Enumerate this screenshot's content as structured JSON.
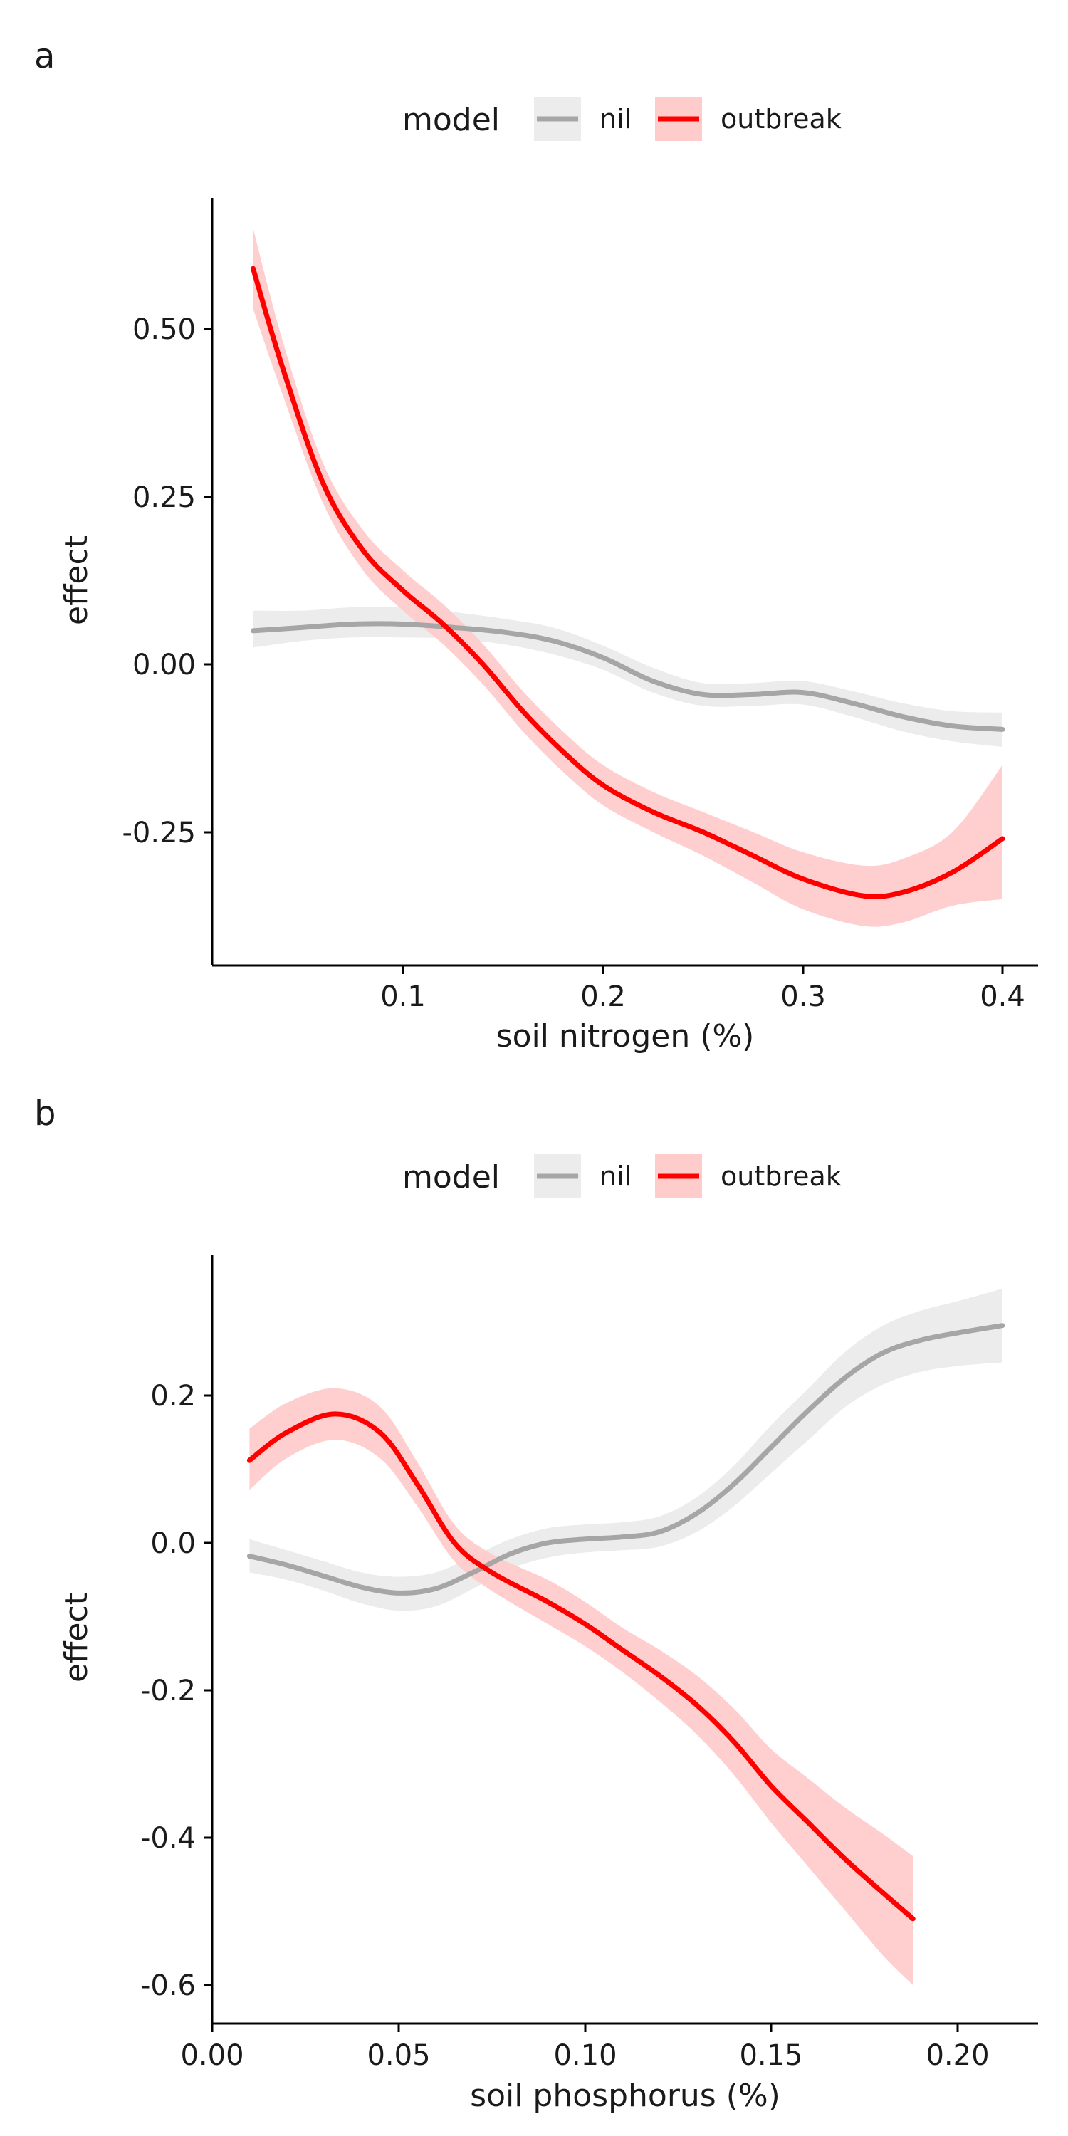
{
  "colors": {
    "nil_line": "#a6a6a6",
    "nil_band": "#ececec",
    "outbreak_line": "#ff0000",
    "outbreak_band": "#ffcccc"
  },
  "chart_data": [
    {
      "type": "line",
      "panel": "a",
      "legend": {
        "title": "model",
        "position": "top",
        "entries": [
          "nil",
          "outbreak"
        ]
      },
      "xlabel": "soil nitrogen (%)",
      "ylabel": "effect",
      "xlim": [
        0.02,
        0.415
      ],
      "ylim": [
        -0.45,
        0.7
      ],
      "x_ticks": [
        0.1,
        0.2,
        0.3,
        0.4
      ],
      "x_tick_labels": [
        "0.1",
        "0.2",
        "0.3",
        "0.4"
      ],
      "y_ticks": [
        -0.25,
        0.0,
        0.25,
        0.5
      ],
      "y_tick_labels": [
        "-0.25",
        "0.00",
        "0.25",
        "0.50"
      ],
      "grid": false,
      "series": [
        {
          "name": "nil",
          "x": [
            0.025,
            0.05,
            0.075,
            0.1,
            0.125,
            0.15,
            0.175,
            0.2,
            0.225,
            0.25,
            0.275,
            0.3,
            0.325,
            0.35,
            0.375,
            0.4
          ],
          "y": [
            0.05,
            0.055,
            0.06,
            0.06,
            0.055,
            0.048,
            0.035,
            0.01,
            -0.025,
            -0.045,
            -0.045,
            -0.042,
            -0.058,
            -0.078,
            -0.092,
            -0.097
          ],
          "lower": [
            0.025,
            0.035,
            0.04,
            0.04,
            0.038,
            0.03,
            0.015,
            -0.008,
            -0.042,
            -0.062,
            -0.062,
            -0.06,
            -0.078,
            -0.1,
            -0.115,
            -0.123
          ],
          "upper": [
            0.08,
            0.08,
            0.085,
            0.085,
            0.078,
            0.068,
            0.055,
            0.028,
            -0.005,
            -0.028,
            -0.028,
            -0.025,
            -0.04,
            -0.058,
            -0.07,
            -0.072
          ]
        },
        {
          "name": "outbreak",
          "x": [
            0.025,
            0.04,
            0.06,
            0.08,
            0.1,
            0.12,
            0.14,
            0.16,
            0.18,
            0.2,
            0.225,
            0.25,
            0.275,
            0.3,
            0.33,
            0.35,
            0.375,
            0.4
          ],
          "y": [
            0.59,
            0.44,
            0.27,
            0.17,
            0.11,
            0.06,
            0.0,
            -0.07,
            -0.13,
            -0.18,
            -0.22,
            -0.25,
            -0.285,
            -0.32,
            -0.345,
            -0.34,
            -0.31,
            -0.26
          ],
          "lower": [
            0.53,
            0.4,
            0.24,
            0.14,
            0.08,
            0.03,
            -0.03,
            -0.1,
            -0.16,
            -0.21,
            -0.25,
            -0.285,
            -0.325,
            -0.365,
            -0.39,
            -0.385,
            -0.36,
            -0.35
          ],
          "upper": [
            0.65,
            0.48,
            0.3,
            0.2,
            0.14,
            0.09,
            0.03,
            -0.04,
            -0.1,
            -0.15,
            -0.19,
            -0.22,
            -0.25,
            -0.28,
            -0.3,
            -0.29,
            -0.25,
            -0.15
          ]
        }
      ]
    },
    {
      "type": "line",
      "panel": "b",
      "legend": {
        "title": "model",
        "position": "top",
        "entries": [
          "nil",
          "outbreak"
        ]
      },
      "xlabel": "soil phosphorus (%)",
      "ylabel": "effect",
      "xlim": [
        0.0,
        0.222
      ],
      "ylim": [
        -0.64,
        0.39
      ],
      "x_ticks": [
        0.0,
        0.05,
        0.1,
        0.15,
        0.2
      ],
      "x_tick_labels": [
        "0.00",
        "0.05",
        "0.10",
        "0.15",
        "0.20"
      ],
      "y_ticks": [
        -0.6,
        -0.4,
        -0.2,
        0.0,
        0.2
      ],
      "y_tick_labels": [
        "-0.6",
        "-0.4",
        "-0.2",
        "0.0",
        "0.2"
      ],
      "grid": false,
      "series": [
        {
          "name": "nil",
          "x": [
            0.01,
            0.02,
            0.03,
            0.04,
            0.05,
            0.06,
            0.07,
            0.08,
            0.09,
            0.1,
            0.11,
            0.12,
            0.13,
            0.14,
            0.15,
            0.16,
            0.17,
            0.18,
            0.19,
            0.2,
            0.212
          ],
          "y": [
            -0.018,
            -0.03,
            -0.045,
            -0.06,
            -0.068,
            -0.062,
            -0.04,
            -0.015,
            0.0,
            0.005,
            0.008,
            0.015,
            0.04,
            0.08,
            0.13,
            0.18,
            0.225,
            0.258,
            0.275,
            0.285,
            0.295
          ],
          "lower": [
            -0.04,
            -0.05,
            -0.065,
            -0.082,
            -0.092,
            -0.086,
            -0.062,
            -0.035,
            -0.02,
            -0.013,
            -0.01,
            -0.005,
            0.015,
            0.05,
            0.095,
            0.14,
            0.185,
            0.215,
            0.232,
            0.24,
            0.245
          ],
          "upper": [
            0.005,
            -0.01,
            -0.025,
            -0.04,
            -0.046,
            -0.04,
            -0.018,
            0.005,
            0.02,
            0.025,
            0.028,
            0.036,
            0.062,
            0.105,
            0.16,
            0.21,
            0.26,
            0.295,
            0.315,
            0.328,
            0.345
          ]
        },
        {
          "name": "outbreak",
          "x": [
            0.01,
            0.02,
            0.033,
            0.045,
            0.055,
            0.065,
            0.075,
            0.09,
            0.1,
            0.11,
            0.12,
            0.13,
            0.14,
            0.15,
            0.16,
            0.17,
            0.18,
            0.188
          ],
          "y": [
            0.112,
            0.15,
            0.175,
            0.15,
            0.08,
            0.0,
            -0.04,
            -0.08,
            -0.11,
            -0.145,
            -0.18,
            -0.22,
            -0.27,
            -0.33,
            -0.38,
            -0.43,
            -0.475,
            -0.51
          ],
          "lower": [
            0.072,
            0.115,
            0.14,
            0.115,
            0.05,
            -0.025,
            -0.065,
            -0.11,
            -0.14,
            -0.175,
            -0.215,
            -0.26,
            -0.315,
            -0.38,
            -0.44,
            -0.5,
            -0.56,
            -0.6
          ],
          "upper": [
            0.155,
            0.19,
            0.21,
            0.185,
            0.11,
            0.025,
            -0.015,
            -0.05,
            -0.08,
            -0.115,
            -0.145,
            -0.18,
            -0.225,
            -0.28,
            -0.32,
            -0.36,
            -0.395,
            -0.425
          ]
        }
      ]
    }
  ]
}
